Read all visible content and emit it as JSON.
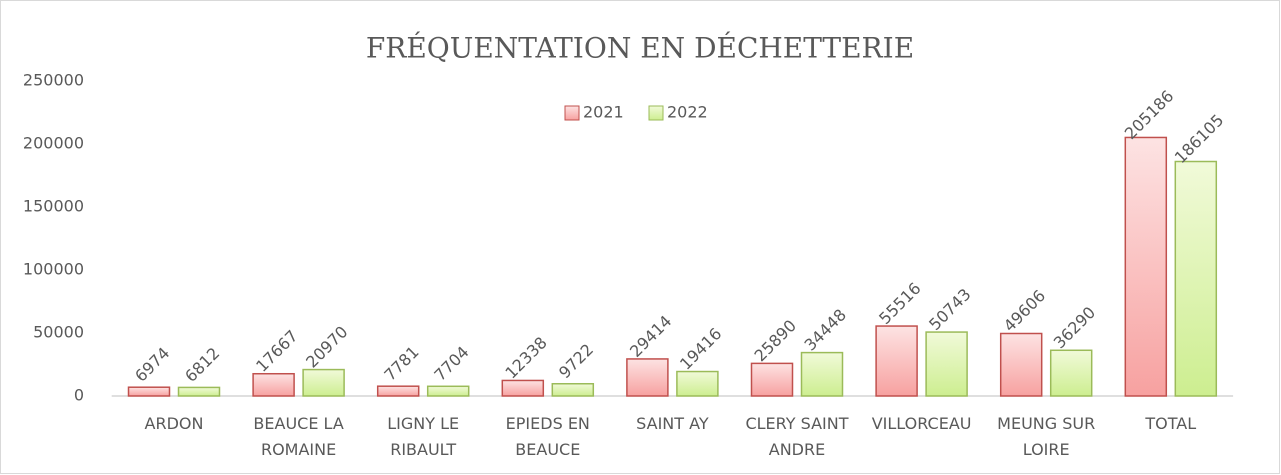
{
  "chart_data": {
    "type": "bar",
    "title": "FRÉQUENTATION EN DÉCHETTERIE",
    "categories": [
      "ARDON",
      "BEAUCE LA ROMAINE",
      "LIGNY LE RIBAULT",
      "EPIEDS EN BEAUCE",
      "SAINT AY",
      "CLERY SAINT ANDRE",
      "VILLORCEAU",
      "MEUNG SUR LOIRE",
      "TOTAL"
    ],
    "series": [
      {
        "name": "2021",
        "color": "#c0504d",
        "values": [
          6974,
          17667,
          7781,
          12338,
          29414,
          25890,
          55516,
          49606,
          205186
        ]
      },
      {
        "name": "2022",
        "color": "#9bbb59",
        "values": [
          6812,
          20970,
          7704,
          9722,
          19416,
          34448,
          50743,
          36290,
          186105
        ]
      }
    ],
    "ylim": [
      0,
      250000
    ],
    "yticks": [
      0,
      50000,
      100000,
      150000,
      200000,
      250000
    ],
    "grid": false,
    "legend": "top"
  }
}
